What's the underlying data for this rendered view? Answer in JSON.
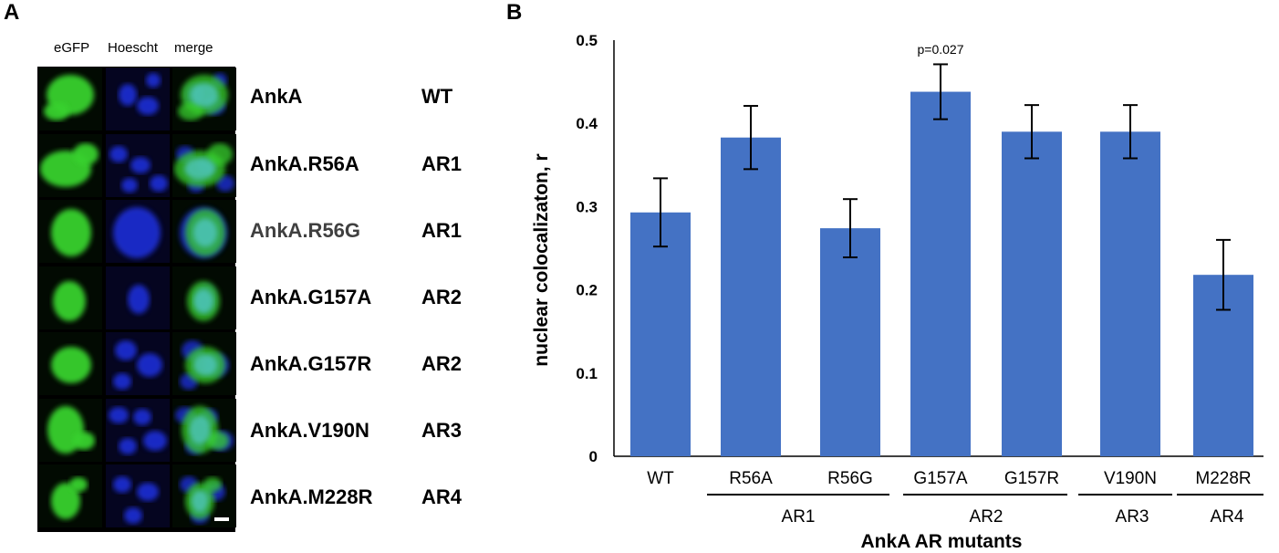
{
  "panel_a": {
    "letter": "A",
    "columns": [
      "eGFP",
      "Hoescht",
      "merge"
    ],
    "rows": [
      {
        "mutant": "AnkA",
        "region": "WT",
        "mutant_color": "#000000"
      },
      {
        "mutant": "AnkA.R56A",
        "region": "AR1",
        "mutant_color": "#000000"
      },
      {
        "mutant": "AnkA.R56G",
        "region": "AR1",
        "mutant_color": "#404040"
      },
      {
        "mutant": "AnkA.G157A",
        "region": "AR2",
        "mutant_color": "#000000"
      },
      {
        "mutant": "AnkA.G157R",
        "region": "AR2",
        "mutant_color": "#000000"
      },
      {
        "mutant": "AnkA.V190N",
        "region": "AR3",
        "mutant_color": "#000000"
      },
      {
        "mutant": "AnkA.M228R",
        "region": "AR4",
        "mutant_color": "#000000"
      }
    ]
  },
  "panel_b": {
    "letter": "B"
  },
  "chart_data": {
    "type": "bar",
    "categories": [
      "WT",
      "R56A",
      "R56G",
      "G157A",
      "G157R",
      "V190N",
      "M228R"
    ],
    "values": [
      0.293,
      0.383,
      0.274,
      0.438,
      0.39,
      0.39,
      0.218
    ],
    "error": [
      0.041,
      0.038,
      0.035,
      0.033,
      0.032,
      0.032,
      0.042
    ],
    "groups": [
      {
        "label": "AR1",
        "categories": [
          "R56A",
          "R56G"
        ]
      },
      {
        "label": "AR2",
        "categories": [
          "G157A",
          "G157R"
        ]
      },
      {
        "label": "AR3",
        "categories": [
          "V190N"
        ]
      },
      {
        "label": "AR4",
        "categories": [
          "M228R"
        ]
      }
    ],
    "annotations": [
      {
        "category": "G157A",
        "text": "p=0.027"
      }
    ],
    "ylabel": "nuclear colocalizaton, r",
    "xlabel": "AnkA AR mutants",
    "ylim": [
      0,
      0.5
    ],
    "yticks": [
      "0",
      "0.1",
      "0.2",
      "0.3",
      "0.4",
      "0.5"
    ],
    "bar_color": "#4472c4",
    "grid": false
  },
  "colors": {
    "gfp": "#39d12e",
    "hoechst": "#1f2fd6",
    "merge": "#4fc6c0"
  }
}
